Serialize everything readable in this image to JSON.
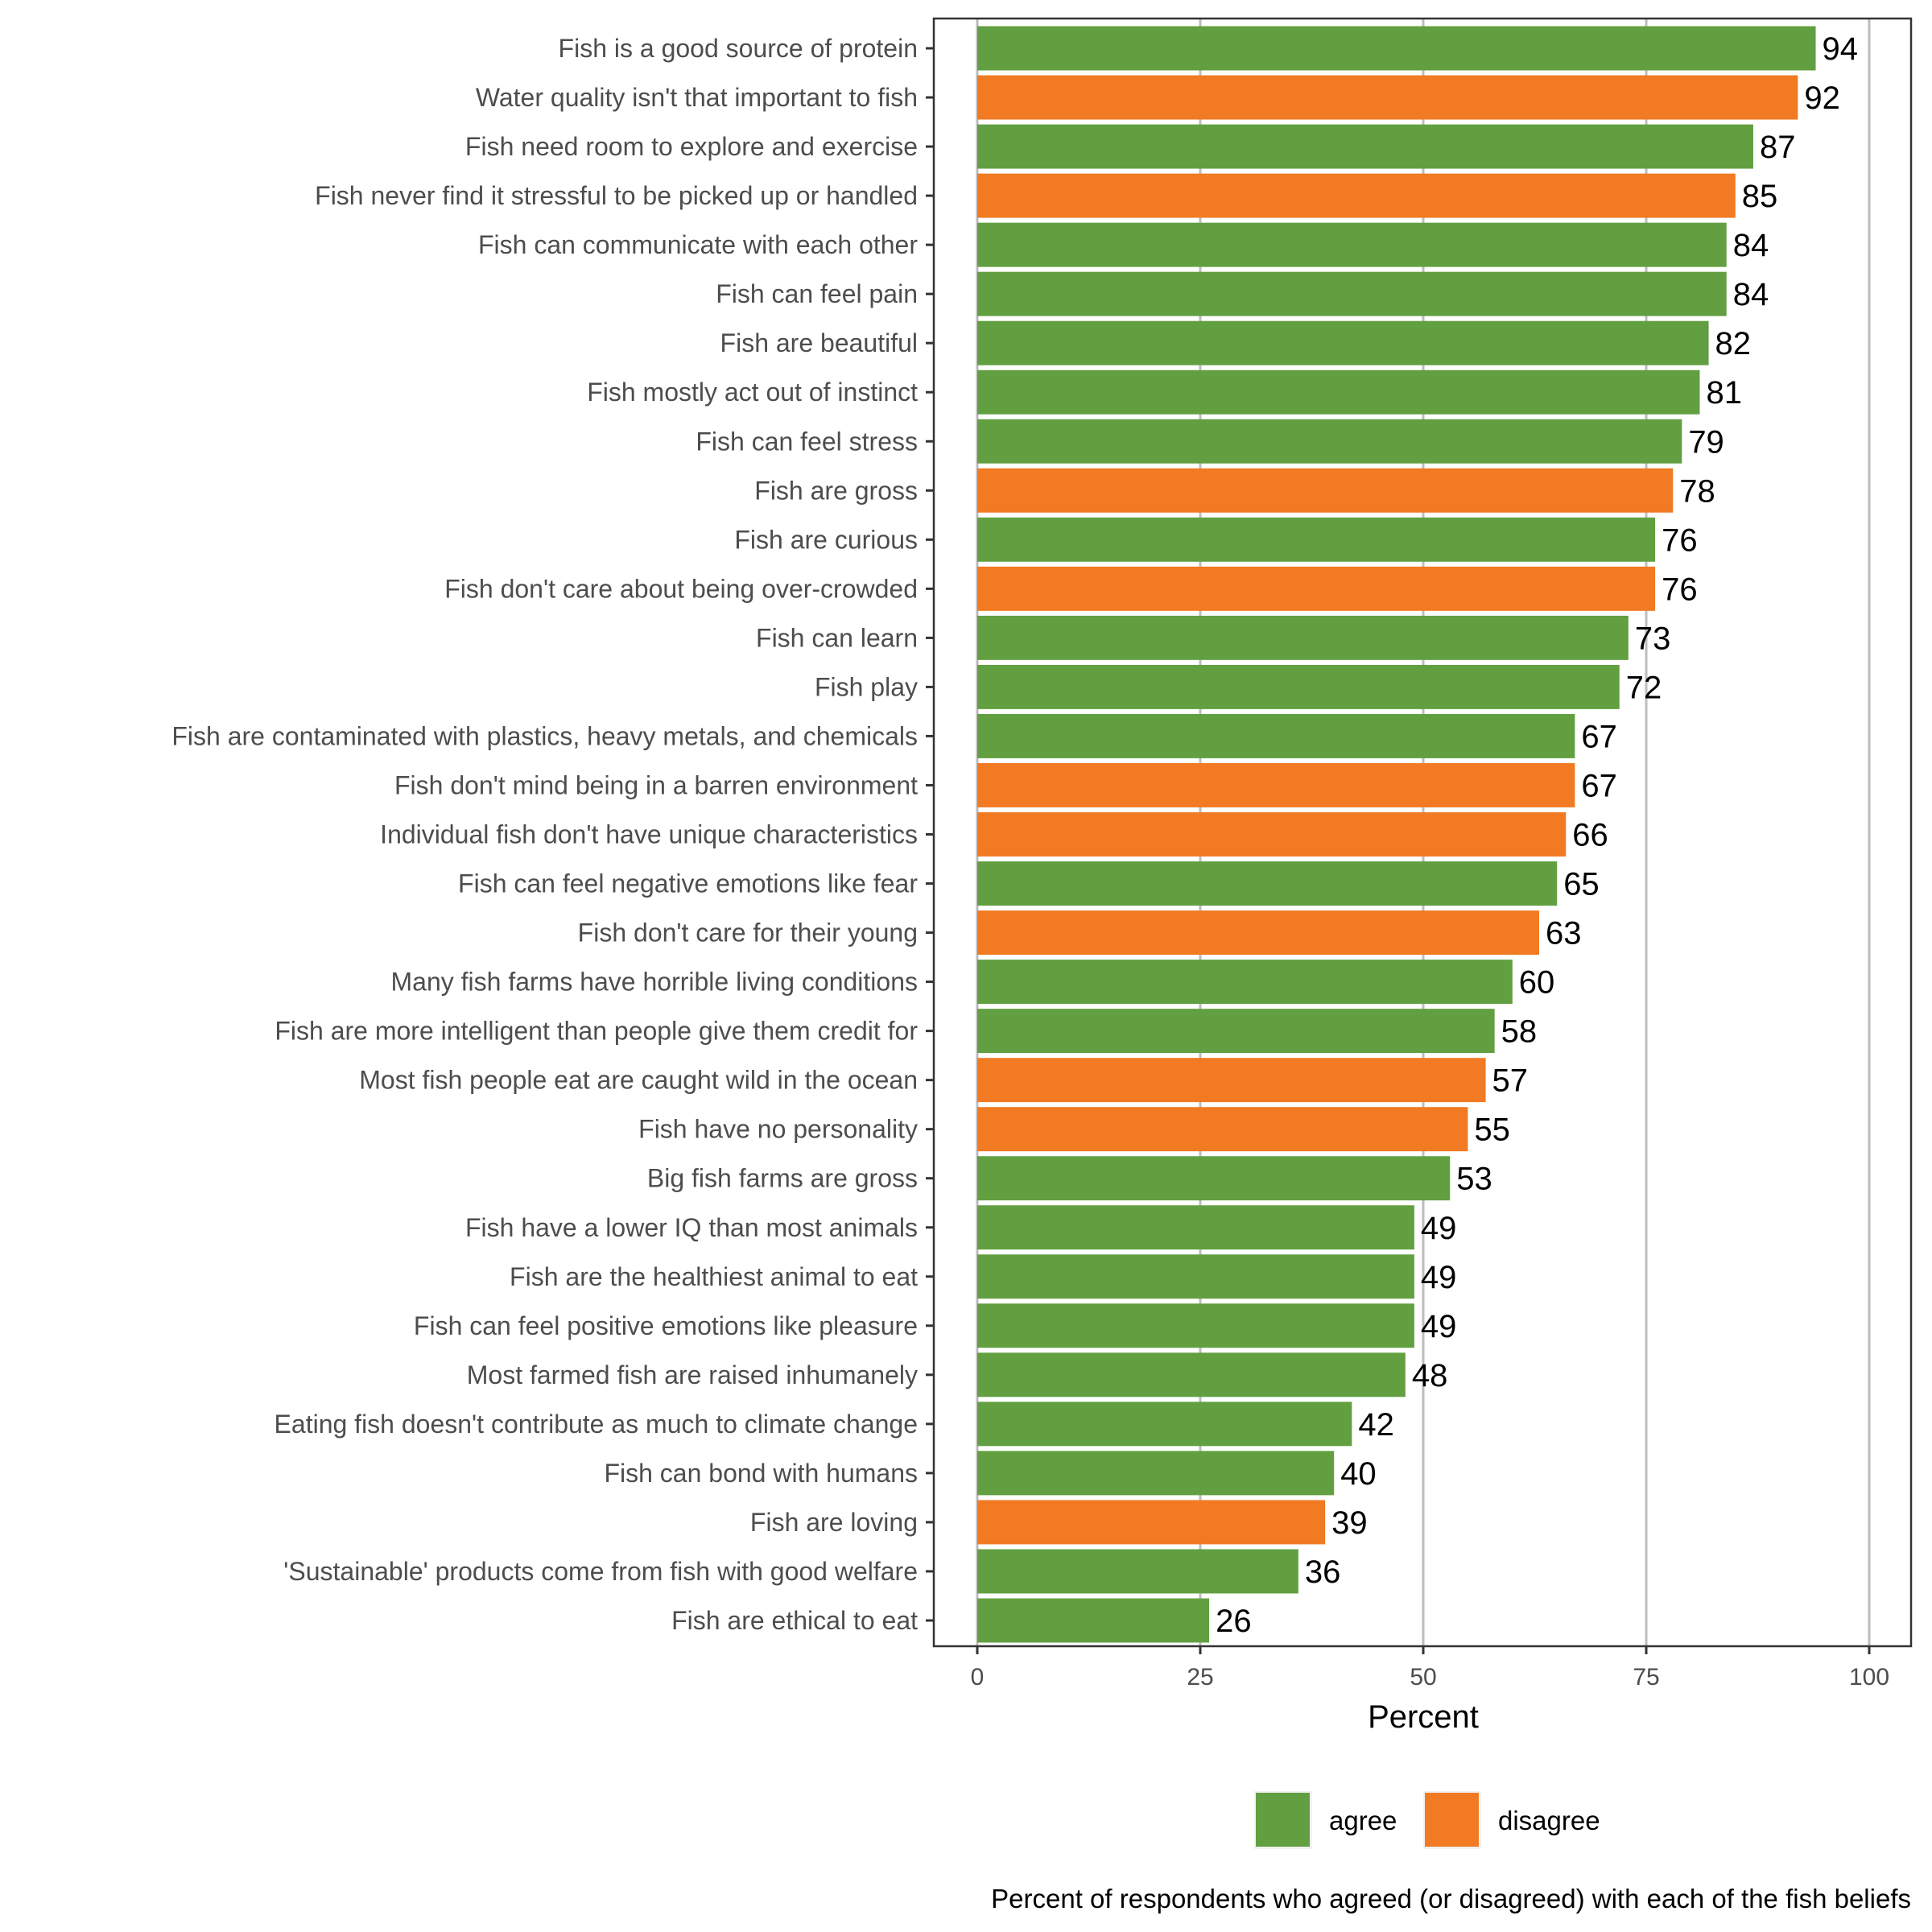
{
  "chart_data": {
    "type": "bar",
    "orientation": "horizontal",
    "title": "",
    "xlabel": "Percent",
    "ylabel": "",
    "xlim": [
      0,
      100
    ],
    "xticks": [
      0,
      25,
      50,
      75,
      100
    ],
    "grid": "vertical-major",
    "caption": "Percent of respondents who agreed (or disagreed) with each of the fish beliefs",
    "legend": {
      "placement": "bottom",
      "entries": [
        {
          "key": "agree",
          "label": "agree",
          "color": "#629F40"
        },
        {
          "key": "disagree",
          "label": "disagree",
          "color": "#F17A22"
        }
      ]
    },
    "categories": [
      "Fish is a good source of protein",
      "Water quality isn't that important to fish",
      "Fish need room to explore and exercise",
      "Fish never find it stressful to be picked up or handled",
      "Fish can communicate with each other",
      "Fish can feel pain",
      "Fish are beautiful",
      "Fish mostly act out of instinct",
      "Fish can feel stress",
      "Fish are gross",
      "Fish are curious",
      "Fish don't care about being over-crowded",
      "Fish can learn",
      "Fish play",
      "Fish are contaminated with plastics, heavy metals, and chemicals",
      "Fish don't mind being in a barren environment",
      "Individual fish don't have unique characteristics",
      "Fish can feel negative emotions like fear",
      "Fish don't care for their young",
      "Many fish farms have horrible living conditions",
      "Fish are more intelligent than people give them credit for",
      "Most fish people eat are caught wild in the ocean",
      "Fish have no personality",
      "Big fish farms are gross",
      "Fish have a lower IQ than most animals",
      "Fish are the healthiest animal to eat",
      "Fish can feel positive emotions like pleasure",
      "Most farmed fish are raised inhumanely",
      "Eating fish doesn't contribute as much to climate change",
      "Fish can bond with humans",
      "Fish are loving",
      "'Sustainable' products come from fish with good welfare",
      "Fish are ethical to eat"
    ],
    "values": [
      94,
      92,
      87,
      85,
      84,
      84,
      82,
      81,
      79,
      78,
      76,
      76,
      73,
      72,
      67,
      67,
      66,
      65,
      63,
      60,
      58,
      57,
      55,
      53,
      49,
      49,
      49,
      48,
      42,
      40,
      39,
      36,
      26
    ],
    "response": [
      "agree",
      "disagree",
      "agree",
      "disagree",
      "agree",
      "agree",
      "agree",
      "agree",
      "agree",
      "disagree",
      "agree",
      "disagree",
      "agree",
      "agree",
      "agree",
      "disagree",
      "disagree",
      "agree",
      "disagree",
      "agree",
      "agree",
      "disagree",
      "disagree",
      "agree",
      "agree",
      "agree",
      "agree",
      "agree",
      "agree",
      "agree",
      "disagree",
      "agree",
      "agree"
    ]
  }
}
